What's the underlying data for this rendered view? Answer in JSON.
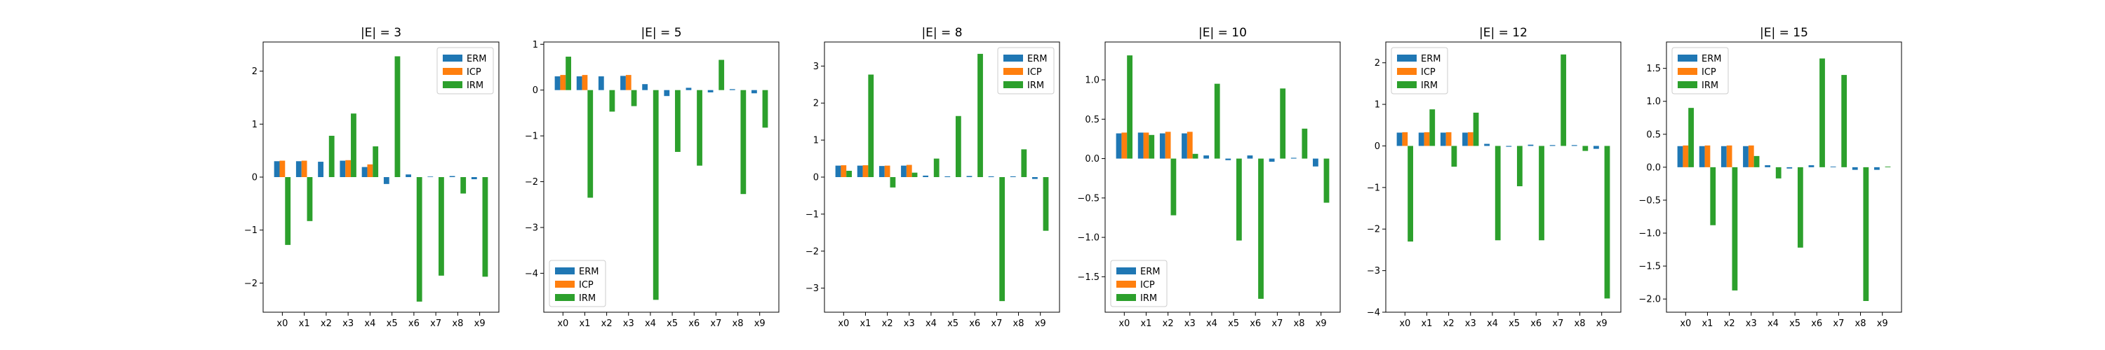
{
  "colors": {
    "ERM": "#1f77b4",
    "ICP": "#ff7f0e",
    "IRM": "#2ca02c"
  },
  "chart_data": [
    {
      "type": "bar",
      "title": "|E| = 3",
      "categories": [
        "x0",
        "x1",
        "x2",
        "x3",
        "x4",
        "x5",
        "x6",
        "x7",
        "x8",
        "x9"
      ],
      "series": [
        {
          "name": "ERM",
          "values": [
            0.3,
            0.3,
            0.29,
            0.31,
            0.19,
            -0.13,
            0.05,
            0.01,
            0.02,
            -0.04
          ]
        },
        {
          "name": "ICP",
          "values": [
            0.31,
            0.31,
            0.0,
            0.32,
            0.24,
            0.0,
            0.0,
            0.0,
            0.0,
            0.0
          ]
        },
        {
          "name": "IRM",
          "values": [
            -1.28,
            -0.83,
            0.78,
            1.2,
            0.58,
            2.28,
            -2.35,
            -1.86,
            -0.31,
            -1.88
          ]
        }
      ],
      "ylim": [
        -2.55,
        2.55
      ],
      "yticks": [
        -2,
        -1,
        0,
        1,
        2
      ],
      "ytick_labels": [
        "−2",
        "−1",
        "0",
        "1",
        "2"
      ],
      "legend": "upper right"
    },
    {
      "type": "bar",
      "title": "|E| = 5",
      "categories": [
        "x0",
        "x1",
        "x2",
        "x3",
        "x4",
        "x5",
        "x6",
        "x7",
        "x8",
        "x9"
      ],
      "series": [
        {
          "name": "ERM",
          "values": [
            0.3,
            0.3,
            0.3,
            0.31,
            0.13,
            -0.13,
            0.05,
            -0.05,
            0.02,
            -0.07
          ]
        },
        {
          "name": "ICP",
          "values": [
            0.33,
            0.33,
            0.0,
            0.33,
            0.0,
            0.0,
            0.0,
            0.0,
            0.0,
            0.0
          ]
        },
        {
          "name": "IRM",
          "values": [
            0.73,
            -2.35,
            -0.47,
            -0.35,
            -4.58,
            -1.35,
            -1.65,
            0.66,
            -2.27,
            -0.82
          ]
        }
      ],
      "ylim": [
        -4.85,
        1.05
      ],
      "yticks": [
        -4,
        -3,
        -2,
        -1,
        0,
        1
      ],
      "ytick_labels": [
        "−4",
        "−3",
        "−2",
        "−1",
        "0",
        "1"
      ],
      "legend": "lower left"
    },
    {
      "type": "bar",
      "title": "|E| = 8",
      "categories": [
        "x0",
        "x1",
        "x2",
        "x3",
        "x4",
        "x5",
        "x6",
        "x7",
        "x8",
        "x9"
      ],
      "series": [
        {
          "name": "ERM",
          "values": [
            0.31,
            0.31,
            0.3,
            0.31,
            0.04,
            0.02,
            0.03,
            0.02,
            0.02,
            -0.05
          ]
        },
        {
          "name": "ICP",
          "values": [
            0.32,
            0.32,
            0.31,
            0.33,
            0.0,
            0.0,
            0.0,
            0.0,
            0.0,
            0.0
          ]
        },
        {
          "name": "IRM",
          "values": [
            0.17,
            2.77,
            -0.28,
            0.12,
            0.5,
            1.65,
            3.33,
            -3.35,
            0.75,
            -1.45
          ]
        }
      ],
      "ylim": [
        -3.65,
        3.65
      ],
      "yticks": [
        -3,
        -2,
        -1,
        0,
        1,
        2,
        3
      ],
      "ytick_labels": [
        "−3",
        "−2",
        "−1",
        "0",
        "1",
        "2",
        "3"
      ],
      "legend": "upper right"
    },
    {
      "type": "bar",
      "title": "|E| = 10",
      "categories": [
        "x0",
        "x1",
        "x2",
        "x3",
        "x4",
        "x5",
        "x6",
        "x7",
        "x8",
        "x9"
      ],
      "series": [
        {
          "name": "ERM",
          "values": [
            0.32,
            0.33,
            0.32,
            0.32,
            0.04,
            -0.02,
            0.04,
            -0.04,
            0.01,
            -0.1
          ]
        },
        {
          "name": "ICP",
          "values": [
            0.33,
            0.33,
            0.34,
            0.34,
            0.0,
            0.0,
            0.0,
            0.0,
            0.0,
            0.0
          ]
        },
        {
          "name": "IRM",
          "values": [
            1.31,
            0.3,
            -0.72,
            0.06,
            0.95,
            -1.04,
            -1.78,
            0.89,
            0.38,
            -0.56
          ]
        }
      ],
      "ylim": [
        -1.95,
        1.48
      ],
      "yticks": [
        -1.5,
        -1.0,
        -0.5,
        0.0,
        0.5,
        1.0
      ],
      "ytick_labels": [
        "−1.5",
        "−1.0",
        "−0.5",
        "0.0",
        "0.5",
        "1.0"
      ],
      "legend": "lower left"
    },
    {
      "type": "bar",
      "title": "|E| = 12",
      "categories": [
        "x0",
        "x1",
        "x2",
        "x3",
        "x4",
        "x5",
        "x6",
        "x7",
        "x8",
        "x9"
      ],
      "series": [
        {
          "name": "ERM",
          "values": [
            0.32,
            0.32,
            0.32,
            0.32,
            0.05,
            -0.02,
            0.03,
            0.02,
            0.02,
            -0.07
          ]
        },
        {
          "name": "ICP",
          "values": [
            0.33,
            0.33,
            0.33,
            0.33,
            0.0,
            0.0,
            0.0,
            0.0,
            0.0,
            0.0
          ]
        },
        {
          "name": "IRM",
          "values": [
            -2.3,
            0.88,
            -0.5,
            0.8,
            -2.27,
            -0.97,
            -2.27,
            2.2,
            -0.12,
            -3.67
          ]
        }
      ],
      "ylim": [
        -4.0,
        2.5
      ],
      "yticks": [
        -4,
        -3,
        -2,
        -1,
        0,
        1,
        2
      ],
      "ytick_labels": [
        "−4",
        "−3",
        "−2",
        "−1",
        "0",
        "1",
        "2"
      ],
      "legend": "upper left"
    },
    {
      "type": "bar",
      "title": "|E| = 15",
      "categories": [
        "x0",
        "x1",
        "x2",
        "x3",
        "x4",
        "x5",
        "x6",
        "x7",
        "x8",
        "x9"
      ],
      "series": [
        {
          "name": "ERM",
          "values": [
            0.32,
            0.32,
            0.32,
            0.32,
            0.03,
            -0.02,
            0.03,
            0.01,
            -0.04,
            -0.04
          ]
        },
        {
          "name": "ICP",
          "values": [
            0.33,
            0.33,
            0.33,
            0.33,
            0.0,
            0.0,
            0.0,
            0.0,
            0.0,
            0.0
          ]
        },
        {
          "name": "IRM",
          "values": [
            0.9,
            -0.88,
            -1.87,
            0.17,
            -0.17,
            -1.22,
            1.65,
            1.4,
            -2.03,
            0.01
          ]
        }
      ],
      "ylim": [
        -2.2,
        1.9
      ],
      "yticks": [
        -2.0,
        -1.5,
        -1.0,
        -0.5,
        0.0,
        0.5,
        1.0,
        1.5
      ],
      "ytick_labels": [
        "−2.0",
        "−1.5",
        "−1.0",
        "−0.5",
        "0.0",
        "0.5",
        "1.0",
        "1.5"
      ],
      "legend": "upper left"
    }
  ]
}
